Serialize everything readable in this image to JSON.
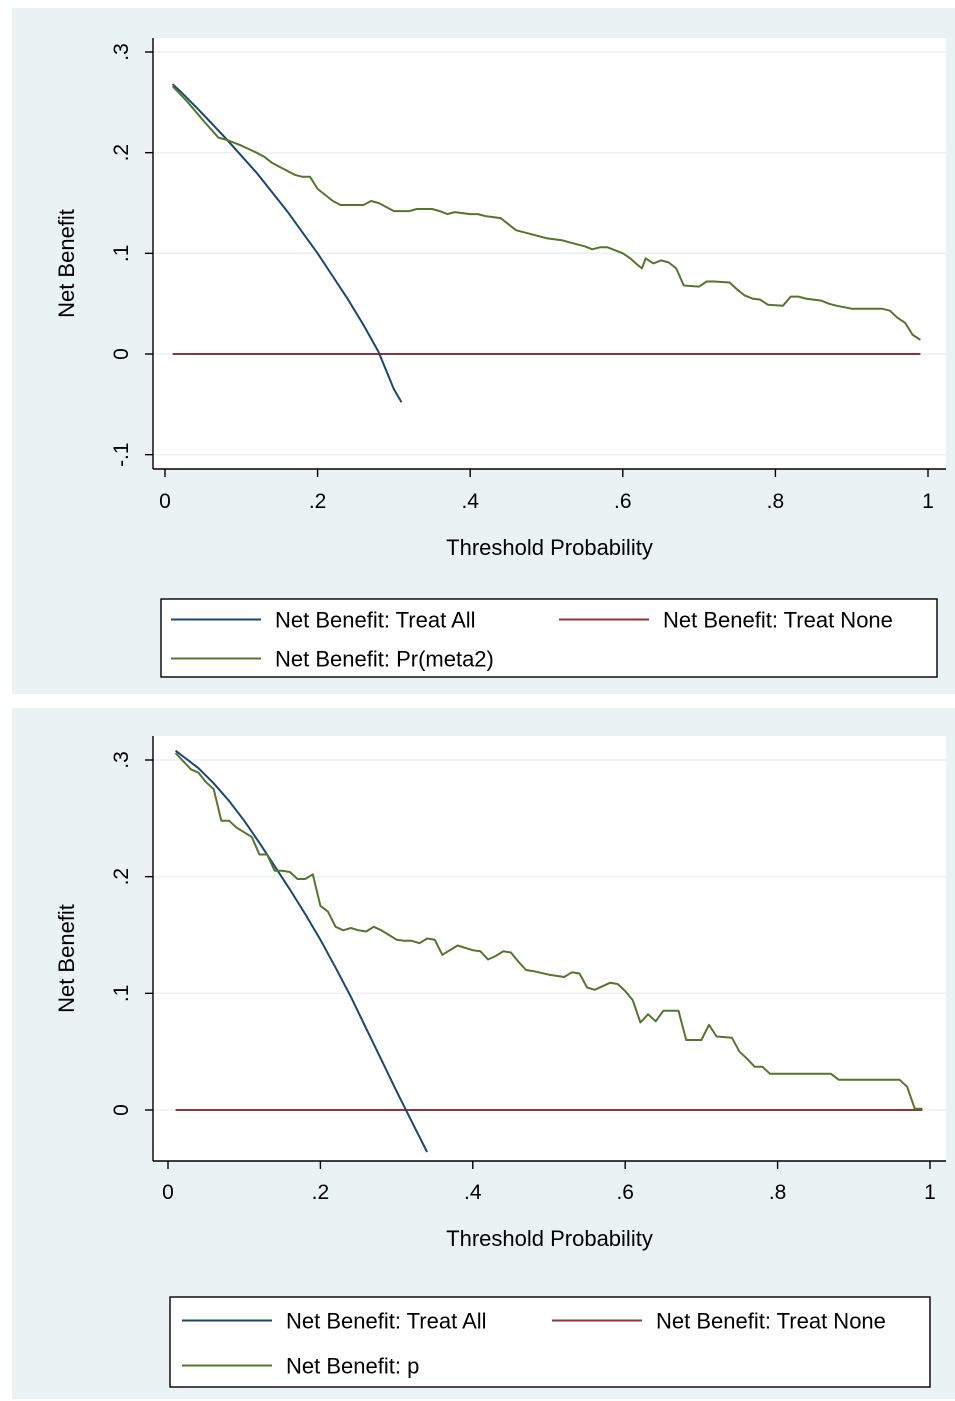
{
  "chart_data": [
    {
      "type": "line",
      "xlabel": "Threshold Probability",
      "ylabel": "Net Benefit",
      "xlim": [
        0,
        1
      ],
      "ylim": [
        -0.1,
        0.3
      ],
      "xticks": [
        0,
        0.2,
        0.4,
        0.6,
        0.8,
        1
      ],
      "xtick_labels": [
        "0",
        ".2",
        ".4",
        ".6",
        ".8",
        "1"
      ],
      "yticks": [
        -0.1,
        0,
        0.1,
        0.2,
        0.3
      ],
      "ytick_labels": [
        "-.1",
        "0",
        ".1",
        ".2",
        ".3"
      ],
      "grid": true,
      "legend": "bottom",
      "colors": {
        "treat_all": "#1a476f",
        "treat_none": "#90353b",
        "model": "#55752f"
      },
      "series": [
        {
          "name": "Net Benefit: Treat All",
          "key": "treat_all",
          "x": [
            0.01,
            0.02,
            0.04,
            0.06,
            0.08,
            0.1,
            0.12,
            0.14,
            0.16,
            0.18,
            0.2,
            0.22,
            0.24,
            0.26,
            0.28,
            0.3,
            0.31
          ],
          "y": [
            0.268,
            0.261,
            0.246,
            0.23,
            0.214,
            0.197,
            0.18,
            0.161,
            0.142,
            0.121,
            0.1,
            0.077,
            0.054,
            0.029,
            0.002,
            -0.035,
            -0.048
          ]
        },
        {
          "name": "Net Benefit: Treat None",
          "key": "treat_none",
          "x": [
            0.01,
            0.99
          ],
          "y": [
            0,
            0
          ]
        },
        {
          "name": "Net Benefit: Pr(meta2)",
          "key": "model",
          "x": [
            0.01,
            0.03,
            0.05,
            0.07,
            0.08,
            0.1,
            0.12,
            0.13,
            0.14,
            0.15,
            0.17,
            0.18,
            0.19,
            0.2,
            0.21,
            0.22,
            0.23,
            0.24,
            0.25,
            0.26,
            0.27,
            0.28,
            0.3,
            0.32,
            0.33,
            0.35,
            0.36,
            0.37,
            0.38,
            0.4,
            0.41,
            0.42,
            0.44,
            0.46,
            0.48,
            0.5,
            0.52,
            0.53,
            0.55,
            0.56,
            0.57,
            0.58,
            0.59,
            0.6,
            0.61,
            0.62,
            0.625,
            0.63,
            0.64,
            0.65,
            0.66,
            0.67,
            0.68,
            0.7,
            0.71,
            0.72,
            0.74,
            0.75,
            0.76,
            0.77,
            0.78,
            0.79,
            0.81,
            0.82,
            0.83,
            0.84,
            0.86,
            0.87,
            0.88,
            0.9,
            0.92,
            0.94,
            0.95,
            0.96,
            0.97,
            0.98,
            0.99
          ],
          "y": [
            0.266,
            0.25,
            0.232,
            0.215,
            0.213,
            0.207,
            0.2,
            0.196,
            0.19,
            0.186,
            0.178,
            0.176,
            0.176,
            0.164,
            0.158,
            0.152,
            0.148,
            0.148,
            0.148,
            0.148,
            0.152,
            0.15,
            0.142,
            0.142,
            0.144,
            0.144,
            0.142,
            0.139,
            0.141,
            0.139,
            0.139,
            0.137,
            0.135,
            0.123,
            0.119,
            0.115,
            0.113,
            0.111,
            0.107,
            0.104,
            0.106,
            0.106,
            0.103,
            0.1,
            0.095,
            0.088,
            0.085,
            0.095,
            0.09,
            0.093,
            0.091,
            0.085,
            0.068,
            0.067,
            0.072,
            0.072,
            0.071,
            0.064,
            0.058,
            0.055,
            0.054,
            0.049,
            0.048,
            0.057,
            0.057,
            0.055,
            0.053,
            0.05,
            0.048,
            0.045,
            0.045,
            0.045,
            0.043,
            0.036,
            0.031,
            0.019,
            0.014
          ]
        }
      ]
    },
    {
      "type": "line",
      "xlabel": "Threshold Probability",
      "ylabel": "Net Benefit",
      "xlim": [
        0,
        1
      ],
      "ylim": [
        -0.05,
        0.3
      ],
      "xticks": [
        0,
        0.2,
        0.4,
        0.6,
        0.8,
        1
      ],
      "xtick_labels": [
        "0",
        ".2",
        ".4",
        ".6",
        ".8",
        "1"
      ],
      "yticks": [
        0,
        0.1,
        0.2,
        0.3
      ],
      "ytick_labels": [
        "0",
        ".1",
        ".2",
        ".3"
      ],
      "grid": true,
      "legend": "bottom",
      "colors": {
        "treat_all": "#1a476f",
        "treat_none": "#90353b",
        "model": "#55752f"
      },
      "series": [
        {
          "name": "Net Benefit: Treat All",
          "key": "treat_all",
          "x": [
            0.01,
            0.02,
            0.04,
            0.06,
            0.08,
            0.1,
            0.12,
            0.14,
            0.16,
            0.18,
            0.2,
            0.22,
            0.24,
            0.26,
            0.28,
            0.3,
            0.32,
            0.34
          ],
          "y": [
            0.308,
            0.303,
            0.293,
            0.28,
            0.265,
            0.248,
            0.229,
            0.209,
            0.189,
            0.168,
            0.146,
            0.122,
            0.097,
            0.07,
            0.043,
            0.016,
            -0.01,
            -0.036
          ]
        },
        {
          "name": "Net Benefit: Treat None",
          "key": "treat_none",
          "x": [
            0.01,
            0.99
          ],
          "y": [
            0,
            0
          ]
        },
        {
          "name": "Net Benefit: p",
          "key": "model",
          "x": [
            0.01,
            0.03,
            0.04,
            0.05,
            0.06,
            0.07,
            0.08,
            0.09,
            0.1,
            0.11,
            0.12,
            0.13,
            0.14,
            0.15,
            0.16,
            0.17,
            0.18,
            0.19,
            0.2,
            0.21,
            0.22,
            0.23,
            0.24,
            0.25,
            0.26,
            0.27,
            0.28,
            0.29,
            0.3,
            0.31,
            0.32,
            0.33,
            0.34,
            0.35,
            0.36,
            0.38,
            0.4,
            0.41,
            0.42,
            0.43,
            0.44,
            0.45,
            0.46,
            0.47,
            0.48,
            0.5,
            0.52,
            0.53,
            0.54,
            0.55,
            0.56,
            0.58,
            0.59,
            0.6,
            0.61,
            0.62,
            0.63,
            0.64,
            0.65,
            0.66,
            0.67,
            0.68,
            0.69,
            0.7,
            0.71,
            0.72,
            0.74,
            0.75,
            0.76,
            0.77,
            0.78,
            0.79,
            0.81,
            0.83,
            0.85,
            0.87,
            0.88,
            0.9,
            0.92,
            0.94,
            0.96,
            0.97,
            0.98,
            0.99
          ],
          "y": [
            0.306,
            0.292,
            0.289,
            0.281,
            0.275,
            0.248,
            0.248,
            0.242,
            0.238,
            0.234,
            0.219,
            0.219,
            0.205,
            0.205,
            0.204,
            0.198,
            0.198,
            0.202,
            0.175,
            0.17,
            0.157,
            0.154,
            0.156,
            0.154,
            0.153,
            0.157,
            0.154,
            0.15,
            0.146,
            0.145,
            0.145,
            0.143,
            0.147,
            0.146,
            0.133,
            0.141,
            0.137,
            0.136,
            0.129,
            0.132,
            0.136,
            0.135,
            0.127,
            0.12,
            0.119,
            0.116,
            0.114,
            0.118,
            0.117,
            0.105,
            0.103,
            0.109,
            0.108,
            0.102,
            0.094,
            0.075,
            0.082,
            0.076,
            0.085,
            0.085,
            0.085,
            0.06,
            0.06,
            0.06,
            0.073,
            0.063,
            0.062,
            0.05,
            0.044,
            0.037,
            0.037,
            0.031,
            0.031,
            0.031,
            0.031,
            0.031,
            0.026,
            0.026,
            0.026,
            0.026,
            0.026,
            0.02,
            0.001,
            0.001
          ]
        }
      ]
    }
  ]
}
